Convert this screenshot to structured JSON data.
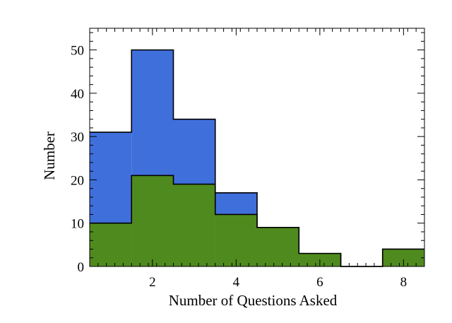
{
  "chart_data": {
    "type": "histogram",
    "xlabel": "Number of Questions Asked",
    "ylabel": "Number",
    "xlim": [
      0.5,
      8.5
    ],
    "ylim": [
      0,
      55
    ],
    "x_ticks": [
      2,
      4,
      6,
      8
    ],
    "y_ticks": [
      0,
      10,
      20,
      30,
      40,
      50
    ],
    "bin_width": 1,
    "bins": [
      1,
      2,
      3,
      4,
      5,
      6,
      7,
      8
    ],
    "series": [
      {
        "color": "#3f6fdb",
        "values": [
          31,
          50,
          34,
          17,
          9,
          3,
          0,
          4
        ]
      },
      {
        "color": "#4f8a1e",
        "values": [
          10,
          21,
          19,
          12,
          9,
          3,
          0,
          4
        ]
      }
    ],
    "grid": false
  }
}
